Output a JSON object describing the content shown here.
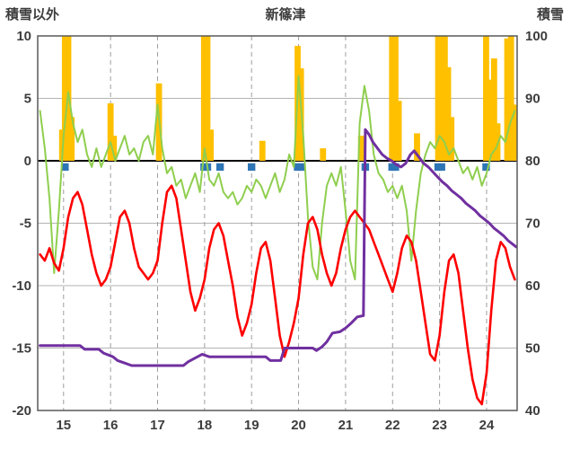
{
  "header": {
    "left_label": "積雪以外",
    "title": "新篠津",
    "right_label": "積雪"
  },
  "chart_data": {
    "type": "line",
    "title": "新篠津",
    "x_axis": {
      "ticks": [
        15,
        16,
        17,
        18,
        19,
        20,
        21,
        22,
        23,
        24
      ],
      "range": [
        14.45,
        24.65
      ]
    },
    "left_axis": {
      "label": "積雪以外",
      "ticks": [
        10,
        5,
        0,
        -5,
        -10,
        -15,
        -20
      ],
      "range": [
        -20,
        10
      ]
    },
    "right_axis": {
      "label": "積雪",
      "ticks": [
        100,
        90,
        80,
        70,
        60,
        50,
        40
      ],
      "range": [
        40,
        100
      ]
    },
    "grid": {
      "horizontal": "solid",
      "vertical": "dashed",
      "zero_line_color": "#000000",
      "grid_color": "#b3b3b3",
      "frame_color": "#595959"
    },
    "series": [
      {
        "name": "orange-bars",
        "type": "bar",
        "axis": "left",
        "color": "#FFC000",
        "bar_width": 0.13,
        "base": 0,
        "points": [
          [
            14.97,
            2.5
          ],
          [
            15.03,
            12
          ],
          [
            15.1,
            12
          ],
          [
            15.17,
            3.5
          ],
          [
            16.0,
            4.6
          ],
          [
            16.07,
            2.0
          ],
          [
            17.03,
            6.2
          ],
          [
            17.99,
            12
          ],
          [
            18.06,
            12
          ],
          [
            18.13,
            2.5
          ],
          [
            19.23,
            1.6
          ],
          [
            19.98,
            9.2
          ],
          [
            20.05,
            7.4
          ],
          [
            20.52,
            1.0
          ],
          [
            21.33,
            2.0
          ],
          [
            21.99,
            12
          ],
          [
            22.06,
            12
          ],
          [
            22.13,
            4.8
          ],
          [
            22.52,
            2.2
          ],
          [
            22.97,
            12
          ],
          [
            23.04,
            12
          ],
          [
            23.11,
            12
          ],
          [
            23.18,
            7.5
          ],
          [
            23.25,
            3.5
          ],
          [
            23.99,
            12
          ],
          [
            24.06,
            6.5
          ],
          [
            24.16,
            8.2
          ],
          [
            24.23,
            3.0
          ],
          [
            24.44,
            9.8
          ],
          [
            24.52,
            12
          ],
          [
            24.58,
            4.5
          ]
        ]
      },
      {
        "name": "blue-marks",
        "type": "bar",
        "axis": "left",
        "color": "#2E75B6",
        "bar_width": 0.16,
        "base": -0.2,
        "points": [
          [
            15.03,
            -0.8
          ],
          [
            17.99,
            -0.8
          ],
          [
            18.06,
            -0.8
          ],
          [
            18.33,
            -0.8
          ],
          [
            19.0,
            -0.8
          ],
          [
            19.98,
            -0.8
          ],
          [
            20.05,
            -0.8
          ],
          [
            21.42,
            -0.8
          ],
          [
            21.99,
            -0.8
          ],
          [
            22.06,
            -0.8
          ],
          [
            22.97,
            -0.8
          ],
          [
            23.04,
            -0.8
          ],
          [
            23.99,
            -0.8
          ]
        ]
      },
      {
        "name": "green-line",
        "type": "line",
        "axis": "left",
        "color": "#8FCE4E",
        "width": 2,
        "x_start": 14.5,
        "x_step": 0.1,
        "values": [
          4.0,
          1.0,
          -3.0,
          -9.0,
          -4.0,
          2.0,
          5.5,
          3.0,
          1.5,
          2.5,
          0.5,
          -0.5,
          1.0,
          -0.5,
          0.5,
          1.5,
          0.0,
          1.0,
          2.0,
          0.5,
          1.0,
          0.0,
          1.5,
          2.0,
          0.5,
          4.5,
          1.0,
          -1.0,
          -0.5,
          -2.0,
          -1.5,
          -3.0,
          -2.0,
          -1.0,
          -2.5,
          1.0,
          -1.5,
          -2.0,
          -1.0,
          -2.5,
          -3.0,
          -2.5,
          -3.5,
          -3.0,
          -2.0,
          -2.5,
          -1.5,
          -2.0,
          -3.0,
          -2.0,
          -1.0,
          -2.5,
          -1.5,
          0.5,
          -0.5,
          6.8,
          2.0,
          -4.5,
          -8.5,
          -9.5,
          -5.0,
          -2.0,
          -1.0,
          -2.0,
          -0.5,
          -4.0,
          -8.0,
          -9.5,
          3.0,
          6.0,
          4.0,
          0.5,
          -1.0,
          -1.5,
          -2.5,
          -2.0,
          -3.0,
          -2.0,
          -4.0,
          -8.0,
          -4.0,
          -1.0,
          0.5,
          1.5,
          1.0,
          2.0,
          1.5,
          0.5,
          1.0,
          0.0,
          -1.0,
          -0.5,
          -1.5,
          -0.5,
          -2.0,
          -1.0,
          0.5,
          1.0,
          2.0,
          1.5,
          3.0,
          4.0
        ]
      },
      {
        "name": "red-line",
        "type": "line",
        "axis": "left",
        "color": "#FF0000",
        "width": 2.6,
        "x_start": 14.5,
        "x_step": 0.1,
        "values": [
          -7.5,
          -8.0,
          -7.0,
          -8.2,
          -8.8,
          -7.0,
          -4.5,
          -3.0,
          -2.5,
          -3.5,
          -5.5,
          -7.5,
          -9.0,
          -10.0,
          -9.5,
          -8.5,
          -6.5,
          -4.5,
          -4.0,
          -5.0,
          -7.0,
          -8.5,
          -9.0,
          -9.5,
          -9.0,
          -8.0,
          -5.0,
          -2.5,
          -2.0,
          -3.0,
          -5.5,
          -8.0,
          -10.5,
          -12.0,
          -11.0,
          -9.5,
          -7.0,
          -5.5,
          -5.0,
          -6.0,
          -8.0,
          -10.0,
          -12.5,
          -14.0,
          -13.0,
          -11.5,
          -9.0,
          -7.0,
          -6.5,
          -8.0,
          -11.0,
          -14.0,
          -15.7,
          -14.5,
          -13.0,
          -11.0,
          -7.5,
          -5.0,
          -4.5,
          -5.5,
          -7.5,
          -9.0,
          -10.0,
          -9.0,
          -7.0,
          -5.5,
          -4.5,
          -4.0,
          -4.5,
          -5.0,
          -5.5,
          -6.5,
          -7.5,
          -8.5,
          -9.5,
          -10.5,
          -9.0,
          -7.0,
          -6.0,
          -6.5,
          -8.0,
          -10.5,
          -13.0,
          -15.5,
          -16.0,
          -14.0,
          -10.5,
          -8.0,
          -7.5,
          -9.0,
          -12.0,
          -15.0,
          -17.5,
          -19.0,
          -19.5,
          -17.0,
          -12.0,
          -8.0,
          -6.5,
          -7.0,
          -8.5,
          -9.5
        ]
      },
      {
        "name": "purple-line",
        "type": "line",
        "axis": "right",
        "color": "#7030A0",
        "width": 3,
        "points": [
          [
            14.5,
            50.4
          ],
          [
            15.35,
            50.4
          ],
          [
            15.45,
            49.8
          ],
          [
            15.75,
            49.8
          ],
          [
            15.85,
            49.2
          ],
          [
            16.05,
            48.6
          ],
          [
            16.15,
            48.0
          ],
          [
            16.3,
            47.6
          ],
          [
            16.45,
            47.2
          ],
          [
            17.55,
            47.2
          ],
          [
            17.65,
            47.8
          ],
          [
            17.8,
            48.4
          ],
          [
            17.95,
            49.0
          ],
          [
            18.1,
            48.6
          ],
          [
            18.25,
            48.6
          ],
          [
            19.3,
            48.6
          ],
          [
            19.4,
            48.0
          ],
          [
            19.62,
            48.0
          ],
          [
            19.7,
            50.0
          ],
          [
            20.3,
            50.0
          ],
          [
            20.38,
            49.6
          ],
          [
            20.5,
            50.2
          ],
          [
            20.6,
            51.0
          ],
          [
            20.72,
            52.4
          ],
          [
            20.88,
            52.6
          ],
          [
            21.0,
            53.2
          ],
          [
            21.12,
            54.0
          ],
          [
            21.25,
            55.0
          ],
          [
            21.38,
            55.2
          ],
          [
            21.42,
            85.0
          ],
          [
            21.5,
            84.2
          ],
          [
            21.58,
            83.0
          ],
          [
            21.68,
            82.0
          ],
          [
            21.78,
            81.0
          ],
          [
            21.88,
            80.4
          ],
          [
            21.98,
            80.0
          ],
          [
            22.08,
            79.4
          ],
          [
            22.18,
            79.0
          ],
          [
            22.28,
            79.6
          ],
          [
            22.38,
            81.0
          ],
          [
            22.46,
            81.6
          ],
          [
            22.56,
            80.6
          ],
          [
            22.66,
            79.6
          ],
          [
            22.76,
            79.0
          ],
          [
            22.86,
            78.2
          ],
          [
            22.96,
            77.4
          ],
          [
            23.06,
            76.6
          ],
          [
            23.16,
            76.0
          ],
          [
            23.26,
            75.2
          ],
          [
            23.36,
            74.6
          ],
          [
            23.46,
            74.0
          ],
          [
            23.56,
            73.2
          ],
          [
            23.66,
            72.6
          ],
          [
            23.76,
            72.0
          ],
          [
            23.86,
            71.2
          ],
          [
            23.96,
            70.6
          ],
          [
            24.06,
            70.0
          ],
          [
            24.16,
            69.2
          ],
          [
            24.26,
            68.6
          ],
          [
            24.36,
            68.0
          ],
          [
            24.46,
            67.2
          ],
          [
            24.56,
            66.6
          ],
          [
            24.63,
            66.2
          ]
        ]
      }
    ]
  }
}
